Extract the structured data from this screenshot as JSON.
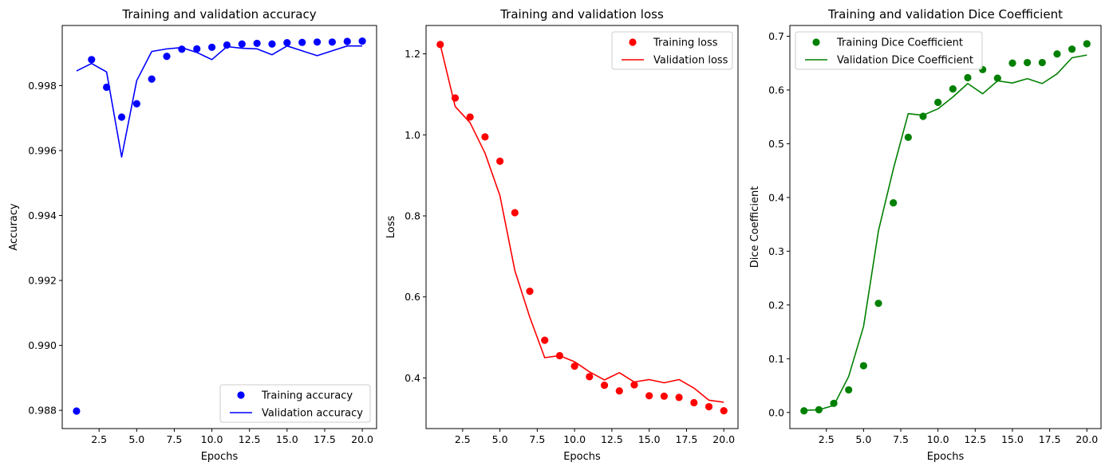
{
  "chart_data": [
    {
      "type": "line",
      "title": "Training and validation accuracy",
      "xlabel": "Epochs",
      "ylabel": "Accuracy",
      "xlim": [
        0.05,
        20.95
      ],
      "ylim": [
        0.98744,
        0.99985
      ],
      "xticks": [
        2.5,
        5.0,
        7.5,
        10.0,
        12.5,
        15.0,
        17.5,
        20.0
      ],
      "xtick_labels": [
        "2.5",
        "5.0",
        "7.5",
        "10.0",
        "12.5",
        "15.0",
        "17.5",
        "20.0"
      ],
      "yticks": [
        0.988,
        0.99,
        0.992,
        0.994,
        0.996,
        0.998
      ],
      "ytick_labels": [
        "0.988",
        "0.990",
        "0.992",
        "0.994",
        "0.996",
        "0.998"
      ],
      "legend_position": "lower-right",
      "grid": false,
      "x": [
        1,
        2,
        3,
        4,
        5,
        6,
        7,
        8,
        9,
        10,
        11,
        12,
        13,
        14,
        15,
        16,
        17,
        18,
        19,
        20
      ],
      "series": [
        {
          "name": "Training accuracy",
          "style": "scatter",
          "color": "#0000ff",
          "values": [
            0.98798,
            0.9988,
            0.99795,
            0.99703,
            0.99744,
            0.9982,
            0.9989,
            0.99912,
            0.99913,
            0.99918,
            0.99925,
            0.99928,
            0.9993,
            0.99928,
            0.99932,
            0.99933,
            0.99934,
            0.99934,
            0.99936,
            0.99937
          ]
        },
        {
          "name": "Validation accuracy",
          "style": "line",
          "color": "#0000ff",
          "values": [
            0.99845,
            0.99868,
            0.99842,
            0.9958,
            0.99815,
            0.99905,
            0.99913,
            0.99917,
            0.99902,
            0.9988,
            0.9992,
            0.99915,
            0.99913,
            0.99895,
            0.99922,
            0.99907,
            0.99892,
            0.99907,
            0.99922,
            0.99922
          ]
        }
      ]
    },
    {
      "type": "line",
      "title": "Training and validation loss",
      "xlabel": "Epochs",
      "ylabel": "Loss",
      "xlim": [
        0.05,
        20.95
      ],
      "ylim": [
        0.275,
        1.27
      ],
      "xticks": [
        2.5,
        5.0,
        7.5,
        10.0,
        12.5,
        15.0,
        17.5,
        20.0
      ],
      "xtick_labels": [
        "2.5",
        "5.0",
        "7.5",
        "10.0",
        "12.5",
        "15.0",
        "17.5",
        "20.0"
      ],
      "yticks": [
        0.4,
        0.6,
        0.8,
        1.0,
        1.2
      ],
      "ytick_labels": [
        "0.4",
        "0.6",
        "0.8",
        "1.0",
        "1.2"
      ],
      "legend_position": "upper-right",
      "grid": false,
      "x": [
        1,
        2,
        3,
        4,
        5,
        6,
        7,
        8,
        9,
        10,
        11,
        12,
        13,
        14,
        15,
        16,
        17,
        18,
        19,
        20
      ],
      "series": [
        {
          "name": "Training loss",
          "style": "scatter",
          "color": "#ff0000",
          "values": [
            1.223,
            1.091,
            1.044,
            0.995,
            0.935,
            0.808,
            0.614,
            0.493,
            0.455,
            0.429,
            0.403,
            0.382,
            0.368,
            0.383,
            0.356,
            0.355,
            0.352,
            0.339,
            0.329,
            0.319
          ]
        },
        {
          "name": "Validation loss",
          "style": "line",
          "color": "#ff0000",
          "values": [
            1.223,
            1.07,
            1.03,
            0.955,
            0.85,
            0.665,
            0.55,
            0.45,
            0.455,
            0.44,
            0.415,
            0.395,
            0.413,
            0.39,
            0.396,
            0.388,
            0.396,
            0.375,
            0.345,
            0.34
          ]
        }
      ]
    },
    {
      "type": "line",
      "title": "Training and validation Dice Coefficient",
      "xlabel": "Epochs",
      "ylabel": "Dice Coefficient",
      "xlim": [
        0.05,
        20.95
      ],
      "ylim": [
        -0.03,
        0.72
      ],
      "xticks": [
        2.5,
        5.0,
        7.5,
        10.0,
        12.5,
        15.0,
        17.5,
        20.0
      ],
      "xtick_labels": [
        "2.5",
        "5.0",
        "7.5",
        "10.0",
        "12.5",
        "15.0",
        "17.5",
        "20.0"
      ],
      "yticks": [
        0.0,
        0.1,
        0.2,
        0.3,
        0.4,
        0.5,
        0.6,
        0.7
      ],
      "ytick_labels": [
        "0.0",
        "0.1",
        "0.2",
        "0.3",
        "0.4",
        "0.5",
        "0.6",
        "0.7"
      ],
      "legend_position": "upper-left",
      "grid": false,
      "x": [
        1,
        2,
        3,
        4,
        5,
        6,
        7,
        8,
        9,
        10,
        11,
        12,
        13,
        14,
        15,
        16,
        17,
        18,
        19,
        20
      ],
      "series": [
        {
          "name": "Training Dice Coefficient",
          "style": "scatter",
          "color": "#008000",
          "values": [
            0.003,
            0.005,
            0.017,
            0.042,
            0.087,
            0.203,
            0.39,
            0.512,
            0.551,
            0.577,
            0.602,
            0.623,
            0.638,
            0.622,
            0.65,
            0.651,
            0.651,
            0.667,
            0.676,
            0.686
          ]
        },
        {
          "name": "Validation Dice Coefficient",
          "style": "line",
          "color": "#008000",
          "values": [
            0.004,
            0.005,
            0.013,
            0.067,
            0.16,
            0.338,
            0.453,
            0.556,
            0.553,
            0.565,
            0.587,
            0.612,
            0.593,
            0.617,
            0.613,
            0.621,
            0.612,
            0.63,
            0.66,
            0.665
          ]
        }
      ]
    }
  ]
}
